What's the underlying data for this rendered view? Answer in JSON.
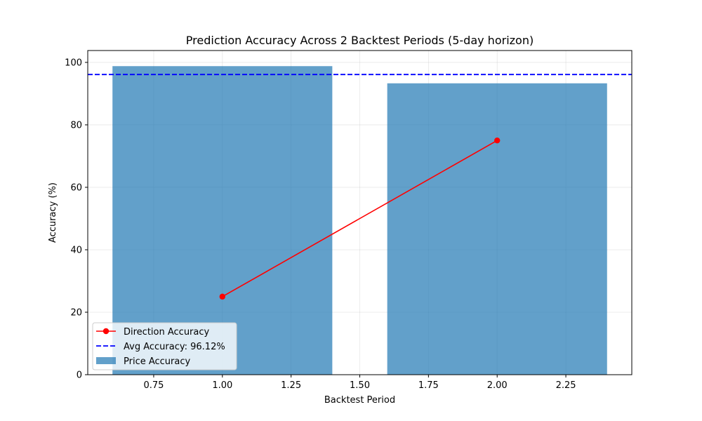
{
  "chart_data": {
    "type": "bar",
    "title": "Prediction Accuracy Across 2 Backtest Periods (5-day horizon)",
    "xlabel": "Backtest Period",
    "ylabel": "Accuracy (%)",
    "xlim": [
      0.51,
      2.49
    ],
    "ylim": [
      0,
      103.8
    ],
    "x_ticks": [
      0.75,
      1.0,
      1.25,
      1.5,
      1.75,
      2.0,
      2.25
    ],
    "x_tick_labels": [
      "0.75",
      "1.00",
      "1.25",
      "1.50",
      "1.75",
      "2.00",
      "2.25"
    ],
    "y_ticks": [
      0,
      20,
      40,
      60,
      80,
      100
    ],
    "y_tick_labels": [
      "0",
      "20",
      "40",
      "60",
      "80",
      "100"
    ],
    "grid": true,
    "legend_position": "lower-left",
    "bars": {
      "name": "Price Accuracy",
      "x": [
        1,
        2
      ],
      "values": [
        98.8,
        93.3
      ],
      "width": 0.8,
      "color": "#1f77b4",
      "opacity": 0.7
    },
    "line": {
      "name": "Direction Accuracy",
      "x": [
        1,
        2
      ],
      "values": [
        25,
        75
      ],
      "color": "#ff0000",
      "marker": "circle"
    },
    "hline": {
      "name": "Avg Accuracy: 96.12%",
      "value": 96.12,
      "color": "#0000ff",
      "style": "dashed"
    },
    "legend": [
      "Direction Accuracy",
      "Avg Accuracy: 96.12%",
      "Price Accuracy"
    ]
  }
}
